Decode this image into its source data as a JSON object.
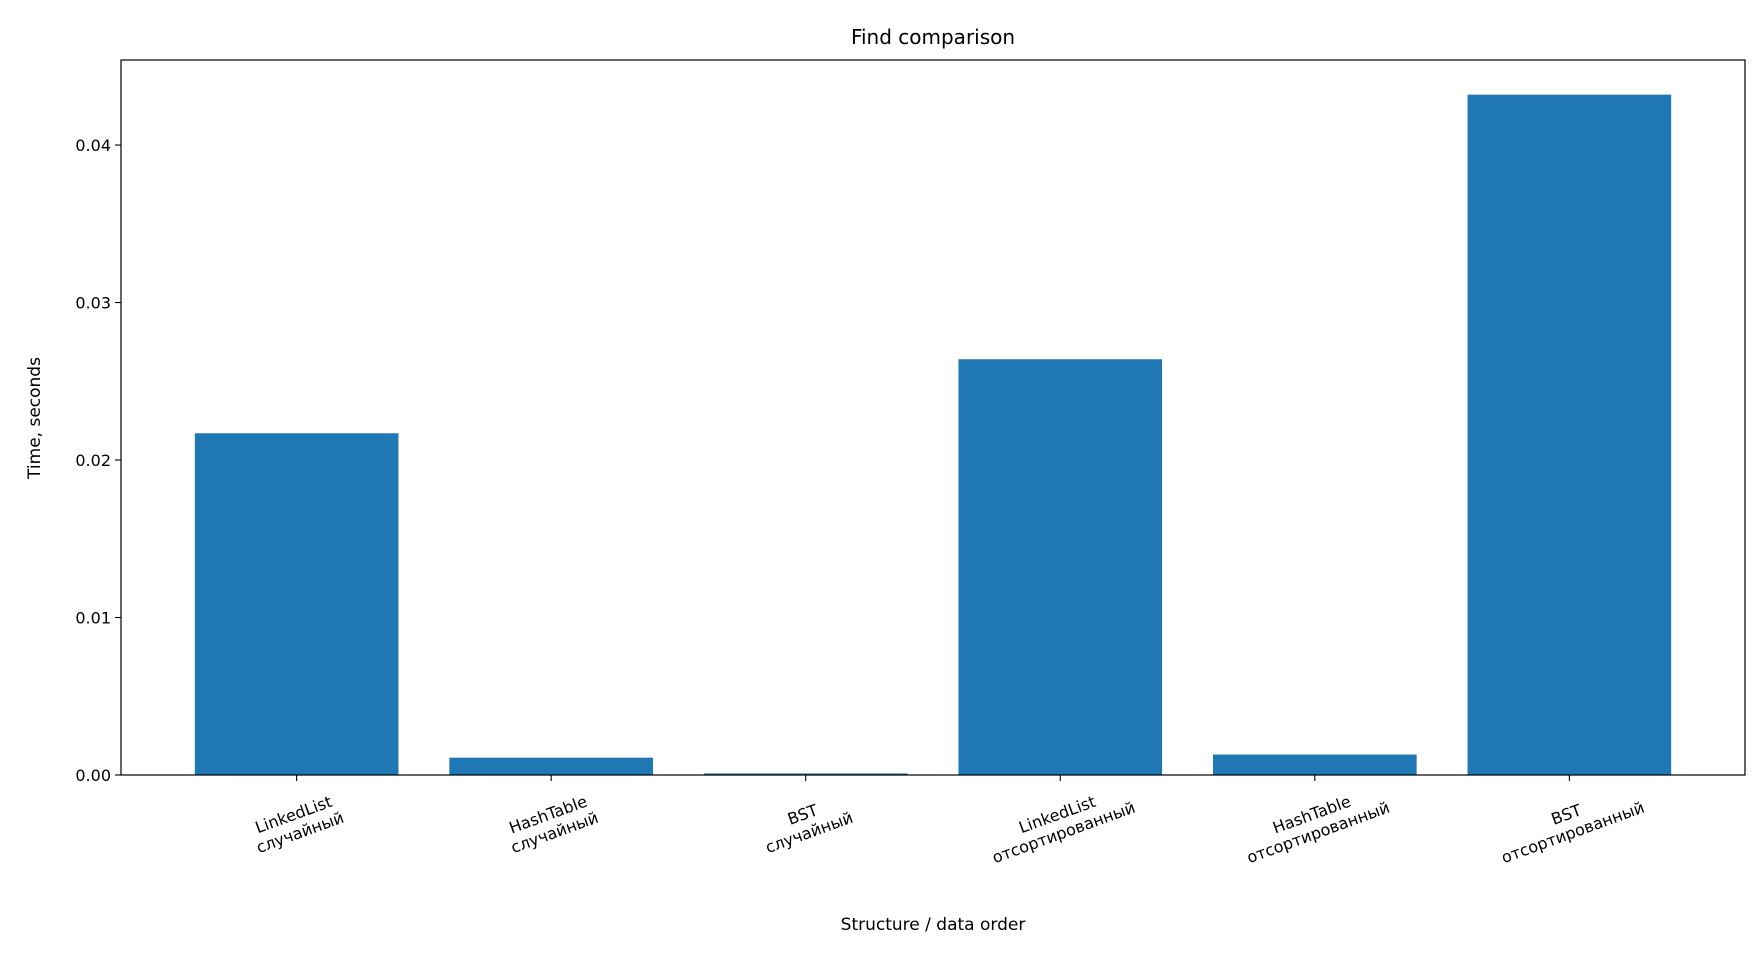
{
  "chart_data": {
    "type": "bar",
    "title": "Find comparison",
    "x_label": "Structure / data order",
    "y_label": "Time, seconds",
    "categories": [
      [
        "LinkedList",
        "случайный"
      ],
      [
        "HashTable",
        "случайный"
      ],
      [
        "BST",
        "случайный"
      ],
      [
        "LinkedList",
        "отсортированный"
      ],
      [
        "HashTable",
        "отсортированный"
      ],
      [
        "BST",
        "отсортированный"
      ]
    ],
    "values": [
      0.0217,
      0.0011,
      0.0001,
      0.0264,
      0.0013,
      0.0432
    ],
    "color": "#1f77b4",
    "ylim": [
      0,
      0.0454
    ],
    "yticks": [
      {
        "value": 0,
        "label": "0.00"
      },
      0.01,
      0.02,
      0.03,
      0.04
    ],
    "grid": false
  }
}
